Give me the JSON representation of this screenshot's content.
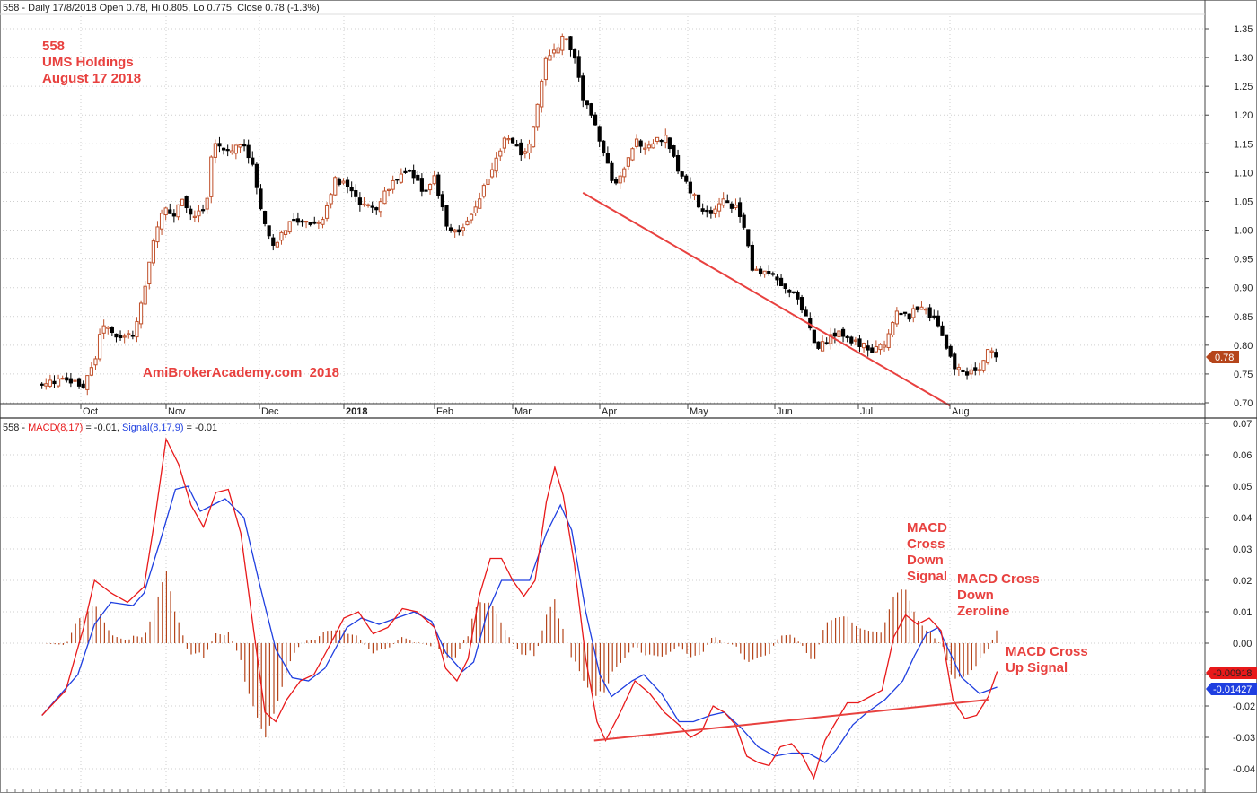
{
  "header": {
    "price_line": "558 - Daily 17/8/2018 Open 0.78, Hi 0.805, Lo 0.775, Close 0.78 (-1.3%)",
    "macd_prefix": "558 - ",
    "macd_label": "MACD(8,17)",
    "macd_value": " = -0.01, ",
    "signal_label": "Signal(8,17,9)",
    "signal_value": " = -0.01"
  },
  "annotations": {
    "stock_code": "558",
    "company": "UMS Holdings",
    "date": "August 17 2018",
    "watermark": "AmiBrokerAcademy.com  2018",
    "cross_down_signal": [
      "MACD",
      "Cross",
      "Down",
      "Signal"
    ],
    "cross_down_zeroline": [
      "MACD Cross",
      "Down",
      "Zeroline"
    ],
    "cross_up_signal": [
      "MACD Cross",
      "Up Signal"
    ]
  },
  "badges": {
    "last_price": "0.78",
    "macd_last": "-0.00918",
    "signal_last": "-0.01427"
  },
  "colors": {
    "up_candle": "#c0502a",
    "down_candle": "#000000",
    "macd_line": "#e8191a",
    "signal_line": "#1f3fe0",
    "histogram": "#b5451b",
    "trendline": "#e8413f",
    "annotation": "#e8413f",
    "price_badge": "#b5451b",
    "macd_badge": "#e8191a",
    "signal_badge": "#1f3fe0"
  },
  "chart_data": [
    {
      "type": "candlestick",
      "series_name": "558",
      "x_tick_labels": [
        "Oct",
        "Nov",
        "Dec",
        "2018",
        "Feb",
        "Mar",
        "Apr",
        "May",
        "Jun",
        "Jul",
        "Aug"
      ],
      "y_tick_labels": [
        "1.35",
        "1.30",
        "1.25",
        "1.20",
        "1.15",
        "1.10",
        "1.05",
        "1.00",
        "0.95",
        "0.90",
        "0.85",
        "0.80",
        "0.75",
        "0.70"
      ],
      "ylim": [
        0.69,
        1.365
      ],
      "grid": true,
      "close_path": [
        [
          "Sep 18",
          0.73
        ],
        [
          "Sep 24",
          0.74
        ],
        [
          "Oct 2",
          0.73
        ],
        [
          "Oct 6",
          0.77
        ],
        [
          "Oct 9",
          0.84
        ],
        [
          "Oct 14",
          0.81
        ],
        [
          "Oct 20",
          0.82
        ],
        [
          "Oct 24",
          0.89
        ],
        [
          "Oct 27",
          0.98
        ],
        [
          "Oct 31",
          1.04
        ],
        [
          "Nov 3",
          1.02
        ],
        [
          "Nov 6",
          1.05
        ],
        [
          "Nov 10",
          1.02
        ],
        [
          "Nov 14",
          1.05
        ],
        [
          "Nov 16",
          1.15
        ],
        [
          "Nov 21",
          1.14
        ],
        [
          "Nov 26",
          1.15
        ],
        [
          "Nov 29",
          1.11
        ],
        [
          "Dec 1",
          1.04
        ],
        [
          "Dec 6",
          0.97
        ],
        [
          "Dec 10",
          1.0
        ],
        [
          "Dec 14",
          1.02
        ],
        [
          "Dec 19",
          1.01
        ],
        [
          "Dec 24",
          1.02
        ],
        [
          "Dec 29",
          1.09
        ],
        [
          "Jan 3",
          1.07
        ],
        [
          "Jan 7",
          1.04
        ],
        [
          "Jan 12",
          1.04
        ],
        [
          "Jan 17",
          1.08
        ],
        [
          "Jan 23",
          1.1
        ],
        [
          "Jan 28",
          1.07
        ],
        [
          "Feb 1",
          1.09
        ],
        [
          "Feb 6",
          1.0
        ],
        [
          "Feb 11",
          1.0
        ],
        [
          "Feb 16",
          1.04
        ],
        [
          "Feb 21",
          1.1
        ],
        [
          "Feb 26",
          1.16
        ],
        [
          "Mar 3",
          1.14
        ],
        [
          "Mar 6",
          1.13
        ],
        [
          "Mar 10",
          1.22
        ],
        [
          "Mar 13",
          1.3
        ],
        [
          "Mar 16",
          1.31
        ],
        [
          "Mar 19",
          1.34
        ],
        [
          "Mar 23",
          1.3
        ],
        [
          "Mar 26",
          1.23
        ],
        [
          "Mar 29",
          1.2
        ],
        [
          "Apr 3",
          1.12
        ],
        [
          "Apr 6",
          1.08
        ],
        [
          "Apr 10",
          1.11
        ],
        [
          "Apr 13",
          1.16
        ],
        [
          "Apr 17",
          1.14
        ],
        [
          "Apr 21",
          1.16
        ],
        [
          "Apr 24",
          1.16
        ],
        [
          "Apr 28",
          1.1
        ],
        [
          "May 2",
          1.07
        ],
        [
          "May 6",
          1.03
        ],
        [
          "May 10",
          1.03
        ],
        [
          "May 14",
          1.05
        ],
        [
          "May 18",
          1.04
        ],
        [
          "May 22",
          0.99
        ],
        [
          "May 24",
          0.93
        ],
        [
          "May 28",
          0.93
        ],
        [
          "Jun 1",
          0.92
        ],
        [
          "Jun 5",
          0.9
        ],
        [
          "Jun 9",
          0.88
        ],
        [
          "Jun 13",
          0.84
        ],
        [
          "Jun 16",
          0.79
        ],
        [
          "Jun 20",
          0.81
        ],
        [
          "Jun 24",
          0.82
        ],
        [
          "Jun 28",
          0.81
        ],
        [
          "Jul 2",
          0.8
        ],
        [
          "Jul 6",
          0.79
        ],
        [
          "Jul 10",
          0.8
        ],
        [
          "Jul 14",
          0.86
        ],
        [
          "Jul 18",
          0.85
        ],
        [
          "Jul 22",
          0.87
        ],
        [
          "Jul 25",
          0.85
        ],
        [
          "Jul 28",
          0.84
        ],
        [
          "Jul 31",
          0.79
        ],
        [
          "Aug 3",
          0.76
        ],
        [
          "Aug 7",
          0.75
        ],
        [
          "Aug 11",
          0.76
        ],
        [
          "Aug 14",
          0.79
        ],
        [
          "Aug 17",
          0.78
        ]
      ],
      "last_bar": {
        "date": "17/8/2018",
        "open": 0.78,
        "high": 0.805,
        "low": 0.775,
        "close": 0.78,
        "change_pct": -1.3
      },
      "annotation_line": {
        "from": [
          "Mar 26",
          1.065
        ],
        "to": [
          "Aug 1",
          0.695
        ]
      }
    },
    {
      "type": "line",
      "x_tick_labels": [
        "Oct",
        "Nov",
        "Dec",
        "2018",
        "Feb",
        "Mar",
        "Apr",
        "May",
        "Jun",
        "Jul",
        "Aug"
      ],
      "y_tick_labels": [
        "0.07",
        "0.06",
        "0.05",
        "0.04",
        "0.03",
        "0.02",
        "0.01",
        "0.00",
        "-0.01",
        "-0.02",
        "-0.03",
        "-0.04"
      ],
      "ylim": [
        -0.0435,
        0.071
      ],
      "grid": true,
      "series": [
        {
          "name": "MACD(8,17)",
          "values": [
            [
              "Sep 18",
              -0.023
            ],
            [
              "Sep 26",
              -0.015
            ],
            [
              "Oct 2",
              0.005
            ],
            [
              "Oct 6",
              0.02
            ],
            [
              "Oct 12",
              0.016
            ],
            [
              "Oct 18",
              0.013
            ],
            [
              "Oct 24",
              0.018
            ],
            [
              "Oct 28",
              0.04
            ],
            [
              "Nov 1",
              0.065
            ],
            [
              "Nov 5",
              0.057
            ],
            [
              "Nov 9",
              0.044
            ],
            [
              "Nov 13",
              0.037
            ],
            [
              "Nov 17",
              0.048
            ],
            [
              "Nov 21",
              0.049
            ],
            [
              "Nov 25",
              0.035
            ],
            [
              "Nov 29",
              0.005
            ],
            [
              "Dec 3",
              -0.022
            ],
            [
              "Dec 7",
              -0.025
            ],
            [
              "Dec 11",
              -0.018
            ],
            [
              "Dec 16",
              -0.012
            ],
            [
              "Dec 21",
              -0.01
            ],
            [
              "Dec 26",
              -0.002
            ],
            [
              "Jan 1",
              0.008
            ],
            [
              "Jan 6",
              0.01
            ],
            [
              "Jan 11",
              0.003
            ],
            [
              "Jan 16",
              0.005
            ],
            [
              "Jan 21",
              0.011
            ],
            [
              "Jan 26",
              0.01
            ],
            [
              "Feb 1",
              0.005
            ],
            [
              "Feb 5",
              -0.008
            ],
            [
              "Feb 9",
              -0.012
            ],
            [
              "Feb 13",
              -0.005
            ],
            [
              "Feb 17",
              0.015
            ],
            [
              "Feb 21",
              0.027
            ],
            [
              "Feb 25",
              0.027
            ],
            [
              "Mar 1",
              0.02
            ],
            [
              "Mar 5",
              0.015
            ],
            [
              "Mar 9",
              0.02
            ],
            [
              "Mar 13",
              0.045
            ],
            [
              "Mar 16",
              0.056
            ],
            [
              "Mar 19",
              0.047
            ],
            [
              "Mar 23",
              0.025
            ],
            [
              "Mar 27",
              -0.005
            ],
            [
              "Mar 31",
              -0.025
            ],
            [
              "Apr 3",
              -0.031
            ],
            [
              "Apr 8",
              -0.022
            ],
            [
              "Apr 13",
              -0.012
            ],
            [
              "Apr 18",
              -0.016
            ],
            [
              "Apr 23",
              -0.022
            ],
            [
              "Apr 28",
              -0.026
            ],
            [
              "May 2",
              -0.03
            ],
            [
              "May 6",
              -0.028
            ],
            [
              "May 10",
              -0.02
            ],
            [
              "May 14",
              -0.022
            ],
            [
              "May 18",
              -0.026
            ],
            [
              "May 22",
              -0.036
            ],
            [
              "May 26",
              -0.038
            ],
            [
              "May 30",
              -0.039
            ],
            [
              "Jun 3",
              -0.033
            ],
            [
              "Jun 7",
              -0.032
            ],
            [
              "Jun 11",
              -0.036
            ],
            [
              "Jun 15",
              -0.043
            ],
            [
              "Jun 19",
              -0.031
            ],
            [
              "Jun 23",
              -0.025
            ],
            [
              "Jun 27",
              -0.019
            ],
            [
              "Jul 1",
              -0.019
            ],
            [
              "Jul 5",
              -0.017
            ],
            [
              "Jul 9",
              -0.015
            ],
            [
              "Jul 13",
              0.002
            ],
            [
              "Jul 17",
              0.009
            ],
            [
              "Jul 21",
              0.006
            ],
            [
              "Jul 25",
              0.008
            ],
            [
              "Jul 29",
              0.004
            ],
            [
              "Aug 2",
              -0.018
            ],
            [
              "Aug 6",
              -0.024
            ],
            [
              "Aug 10",
              -0.023
            ],
            [
              "Aug 14",
              -0.017
            ],
            [
              "Aug 17",
              -0.009
            ]
          ]
        },
        {
          "name": "Signal(8,17,9)",
          "values": [
            [
              "Sep 18",
              -0.023
            ],
            [
              "Sep 30",
              -0.01
            ],
            [
              "Oct 6",
              0.006
            ],
            [
              "Oct 12",
              0.013
            ],
            [
              "Oct 20",
              0.012
            ],
            [
              "Oct 24",
              0.016
            ],
            [
              "Oct 30",
              0.033
            ],
            [
              "Nov 4",
              0.049
            ],
            [
              "Nov 8",
              0.05
            ],
            [
              "Nov 12",
              0.042
            ],
            [
              "Nov 16",
              0.044
            ],
            [
              "Nov 20",
              0.046
            ],
            [
              "Nov 26",
              0.04
            ],
            [
              "Dec 1",
              0.019
            ],
            [
              "Dec 7",
              -0.002
            ],
            [
              "Dec 13",
              -0.011
            ],
            [
              "Dec 19",
              -0.012
            ],
            [
              "Dec 25",
              -0.008
            ],
            [
              "Jan 2",
              0.005
            ],
            [
              "Jan 7",
              0.008
            ],
            [
              "Jan 13",
              0.006
            ],
            [
              "Jan 19",
              0.008
            ],
            [
              "Jan 25",
              0.01
            ],
            [
              "Jan 31",
              0.007
            ],
            [
              "Feb 5",
              -0.003
            ],
            [
              "Feb 11",
              -0.009
            ],
            [
              "Feb 15",
              -0.006
            ],
            [
              "Feb 20",
              0.01
            ],
            [
              "Feb 25",
              0.02
            ],
            [
              "Mar 1",
              0.02
            ],
            [
              "Mar 7",
              0.02
            ],
            [
              "Mar 13",
              0.035
            ],
            [
              "Mar 18",
              0.044
            ],
            [
              "Mar 22",
              0.036
            ],
            [
              "Mar 27",
              0.01
            ],
            [
              "Apr 1",
              -0.01
            ],
            [
              "Apr 5",
              -0.017
            ],
            [
              "Apr 12",
              -0.012
            ],
            [
              "Apr 16",
              -0.01
            ],
            [
              "Apr 22",
              -0.016
            ],
            [
              "Apr 28",
              -0.025
            ],
            [
              "May 3",
              -0.025
            ],
            [
              "May 9",
              -0.023
            ],
            [
              "May 14",
              -0.022
            ],
            [
              "May 20",
              -0.027
            ],
            [
              "May 26",
              -0.033
            ],
            [
              "Jun 1",
              -0.036
            ],
            [
              "Jun 7",
              -0.035
            ],
            [
              "Jun 13",
              -0.035
            ],
            [
              "Jun 19",
              -0.038
            ],
            [
              "Jun 23",
              -0.034
            ],
            [
              "Jun 29",
              -0.026
            ],
            [
              "Jul 4",
              -0.022
            ],
            [
              "Jul 10",
              -0.018
            ],
            [
              "Jul 16",
              -0.012
            ],
            [
              "Jul 20",
              -0.004
            ],
            [
              "Jul 24",
              0.003
            ],
            [
              "Jul 28",
              0.005
            ],
            [
              "Aug 1",
              -0.003
            ],
            [
              "Aug 5",
              -0.011
            ],
            [
              "Aug 11",
              -0.016
            ],
            [
              "Aug 17",
              -0.014
            ]
          ]
        },
        {
          "name": "Histogram",
          "type": "bar",
          "note_series": "MACD minus Signal, vertical bars around zero"
        }
      ],
      "annotation_line": {
        "from": [
          "Mar 30",
          -0.031
        ],
        "to": [
          "Aug 14",
          -0.018
        ]
      }
    }
  ]
}
